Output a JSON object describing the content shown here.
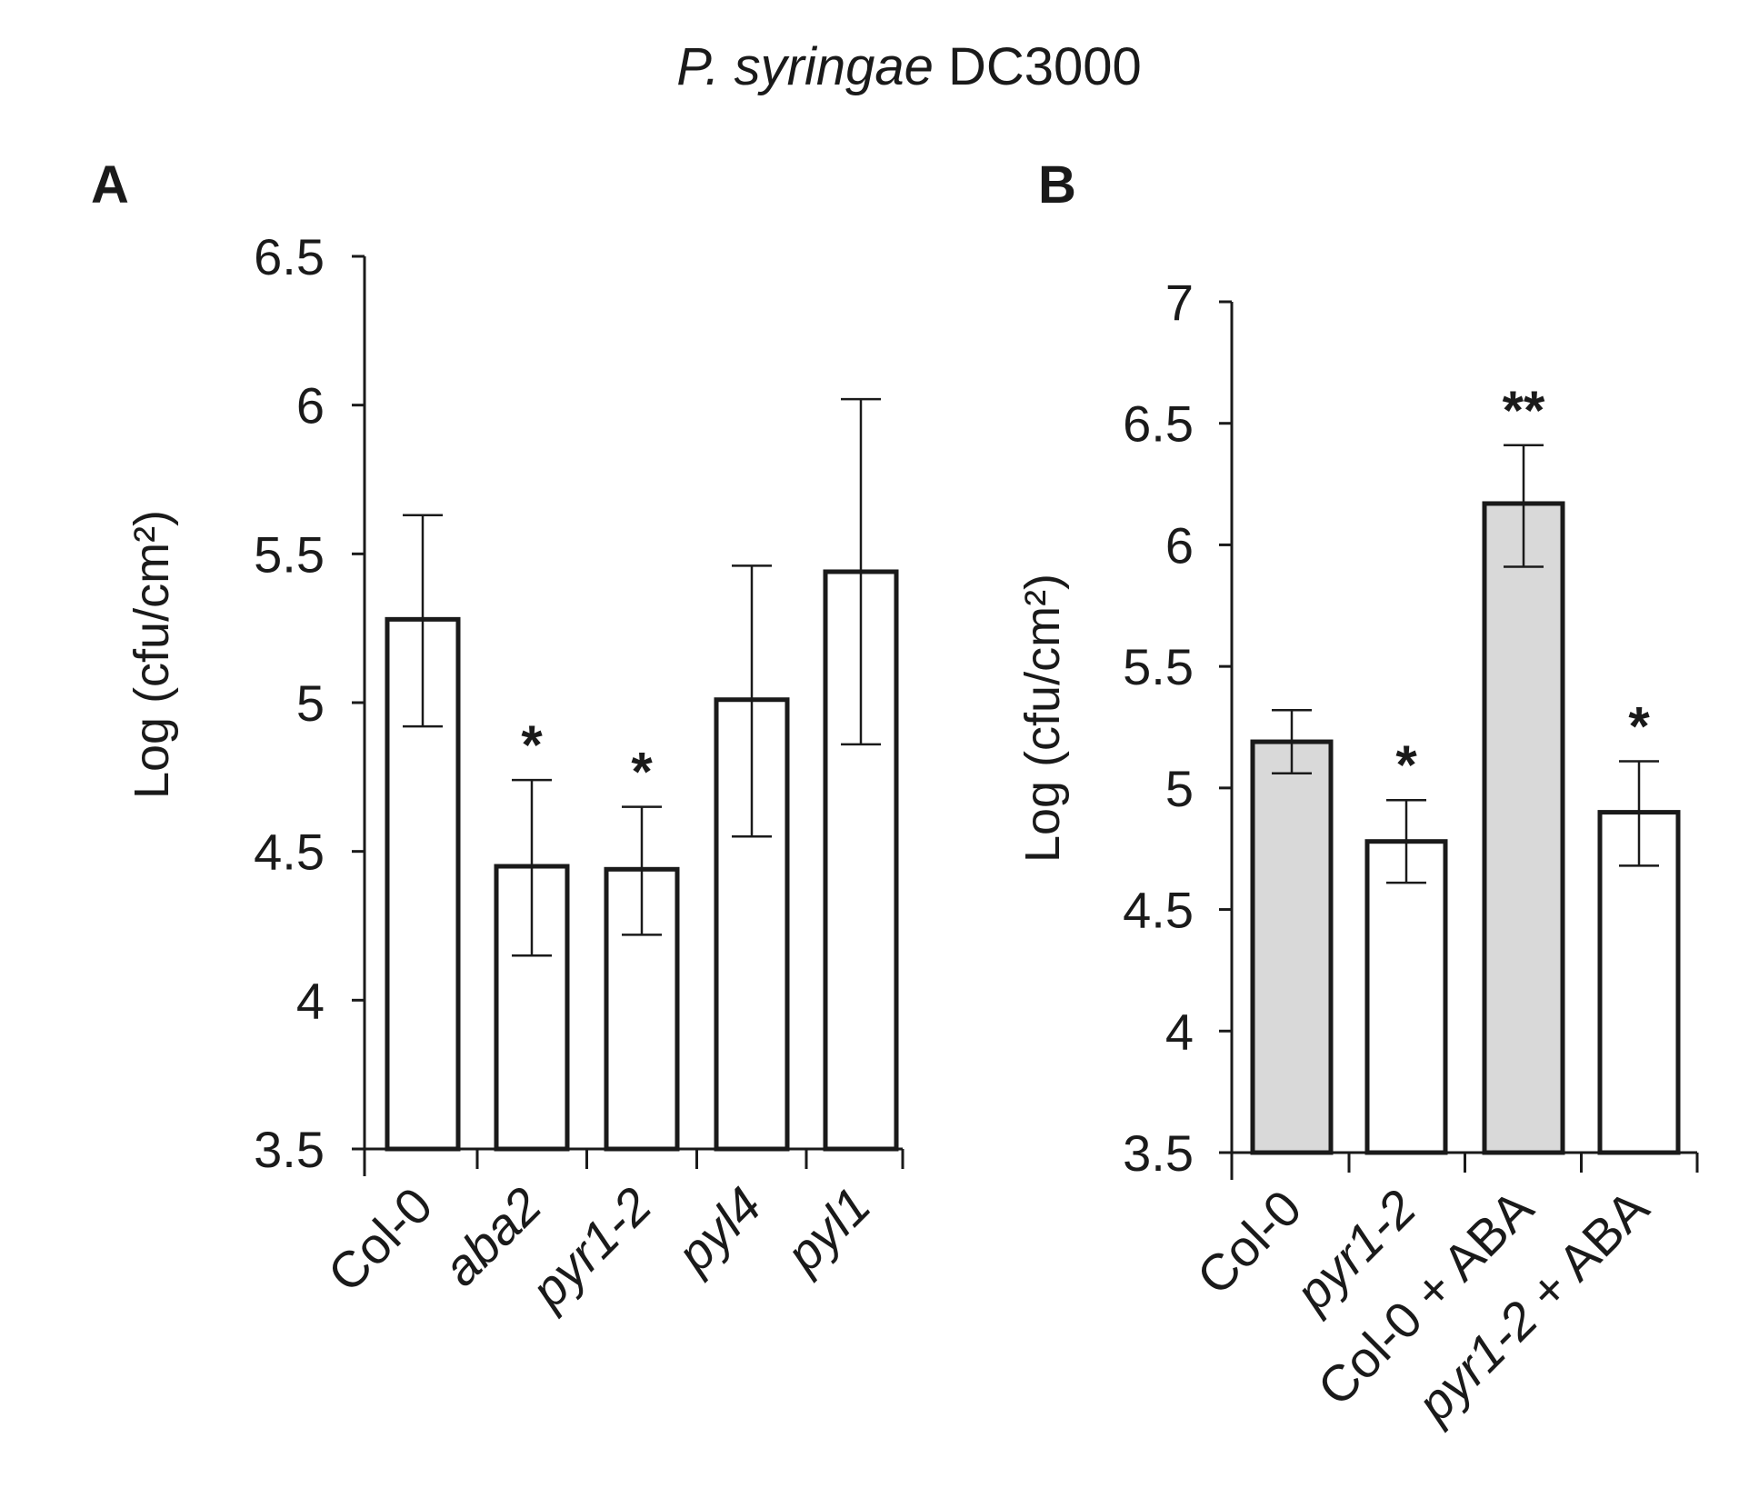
{
  "figure_title": {
    "italic": "P. syringae",
    "normal": " DC3000"
  },
  "chart_data": [
    {
      "panel": "A",
      "type": "bar",
      "title": "",
      "xlabel": "",
      "ylabel": "Log (cfu/cm²)",
      "ylim": [
        3.5,
        6.5
      ],
      "yticks": [
        "3.5",
        "4",
        "4.5",
        "5",
        "5.5",
        "6",
        "6.5"
      ],
      "grid": false,
      "categories": [
        "Col-0",
        "aba2",
        "pyr1-2",
        "pyl4",
        "pyl1"
      ],
      "italic_categories": [
        false,
        true,
        true,
        true,
        true
      ],
      "values": [
        5.28,
        4.45,
        4.44,
        5.01,
        5.44
      ],
      "error_low": [
        4.92,
        4.15,
        4.22,
        4.55,
        4.86
      ],
      "error_high": [
        5.63,
        4.74,
        4.65,
        5.46,
        6.02
      ],
      "fills": [
        "#ffffff",
        "#ffffff",
        "#ffffff",
        "#ffffff",
        "#ffffff"
      ],
      "annotations": [
        "",
        "*",
        "*",
        "",
        ""
      ]
    },
    {
      "panel": "B",
      "type": "bar",
      "title": "",
      "xlabel": "",
      "ylabel": "Log (cfu/cm²)",
      "ylim": [
        3.5,
        7
      ],
      "yticks": [
        "3.5",
        "4",
        "4.5",
        "5",
        "5.5",
        "6",
        "6.5",
        "7"
      ],
      "grid": false,
      "categories": [
        "Col-0",
        "pyr1-2",
        "Col-0 + ABA",
        "pyr1-2 + ABA"
      ],
      "category_parts": [
        [
          {
            "t": "Col-0",
            "i": false
          }
        ],
        [
          {
            "t": "pyr1-2",
            "i": true
          }
        ],
        [
          {
            "t": "Col-0 + ABA",
            "i": false
          }
        ],
        [
          {
            "t": "pyr1-2",
            "i": true
          },
          {
            "t": " + ABA",
            "i": false
          }
        ]
      ],
      "values": [
        5.19,
        4.78,
        6.17,
        4.9
      ],
      "error_low": [
        5.06,
        4.61,
        5.91,
        4.68
      ],
      "error_high": [
        5.32,
        4.95,
        6.41,
        5.11
      ],
      "fills": [
        "#d9d9d9",
        "#ffffff",
        "#d9d9d9",
        "#ffffff"
      ],
      "annotations": [
        "",
        "*",
        "**",
        "*"
      ]
    }
  ]
}
